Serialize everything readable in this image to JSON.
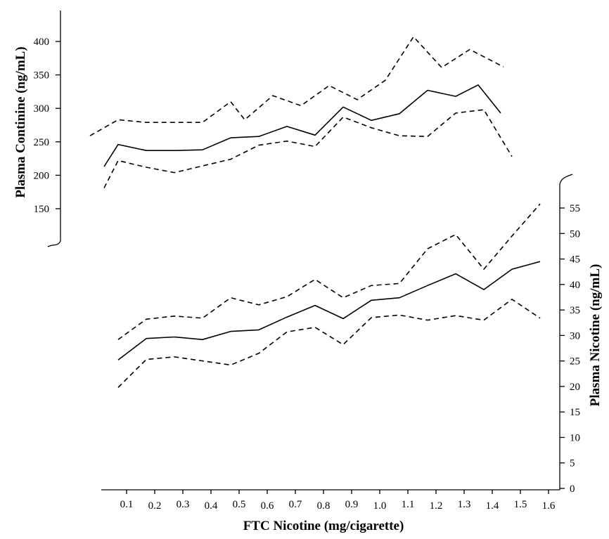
{
  "chart_data": [
    {
      "type": "line",
      "title": "",
      "xlabel": "FTC Nicotine (mg/cigarette)",
      "ylabel": "Plasma Continine (ng/mL)",
      "y_axis_side": "left",
      "y_axis_break": "bottom",
      "x_ticks": [
        "0.1",
        "0.2",
        "0.3",
        "0.4",
        "0.5",
        "0.6",
        "0.7",
        "0.8",
        "0.9",
        "1.0",
        "1.1",
        "1.2",
        "1.3",
        "1.4",
        "1.5",
        "1.6"
      ],
      "y_ticks": [
        "150",
        "200",
        "250",
        "300",
        "350",
        "400"
      ],
      "ylim": [
        100,
        430
      ],
      "grid": false,
      "series": [
        {
          "style": "solid",
          "x": [
            0.02,
            0.07,
            0.17,
            0.27,
            0.37,
            0.47,
            0.57,
            0.67,
            0.77,
            0.87,
            0.97,
            1.07,
            1.17,
            1.27,
            1.35,
            1.43
          ],
          "y": [
            213,
            246,
            237,
            237,
            238,
            256,
            258,
            273,
            260,
            302,
            282,
            292,
            327,
            318,
            335,
            293
          ]
        },
        {
          "style": "dashed",
          "x": [
            -0.03,
            0.07,
            0.17,
            0.27,
            0.37,
            0.47,
            0.52,
            0.62,
            0.72,
            0.82,
            0.92,
            1.02,
            1.12,
            1.22,
            1.32,
            1.44
          ],
          "y": [
            259,
            283,
            279,
            279,
            279,
            310,
            283,
            319,
            304,
            334,
            313,
            342,
            407,
            361,
            388,
            362
          ]
        },
        {
          "style": "dashed",
          "x": [
            0.02,
            0.07,
            0.17,
            0.27,
            0.37,
            0.47,
            0.57,
            0.67,
            0.77,
            0.87,
            0.97,
            1.07,
            1.17,
            1.27,
            1.37,
            1.47
          ],
          "y": [
            181,
            222,
            212,
            204,
            214,
            224,
            245,
            251,
            243,
            287,
            271,
            259,
            258,
            293,
            298,
            228
          ]
        }
      ]
    },
    {
      "type": "line",
      "title": "",
      "xlabel": "FTC Nicotine (mg/cigarette)",
      "ylabel": "Plasma Nicotine (ng/mL)",
      "y_axis_side": "right",
      "y_axis_break": "top",
      "x_ticks": [
        "0.1",
        "0.2",
        "0.3",
        "0.4",
        "0.5",
        "0.6",
        "0.7",
        "0.8",
        "0.9",
        "1.0",
        "1.1",
        "1.2",
        "1.3",
        "1.4",
        "1.5",
        "1.6"
      ],
      "y_ticks": [
        "0",
        "5",
        "10",
        "15",
        "20",
        "25",
        "30",
        "35",
        "40",
        "45",
        "50",
        "55"
      ],
      "ylim": [
        0,
        60
      ],
      "grid": false,
      "series": [
        {
          "style": "solid",
          "x": [
            0.07,
            0.17,
            0.27,
            0.37,
            0.47,
            0.57,
            0.67,
            0.77,
            0.87,
            0.97,
            1.07,
            1.17,
            1.27,
            1.37,
            1.47,
            1.57
          ],
          "y": [
            25.2,
            29.4,
            29.7,
            29.2,
            30.8,
            31.1,
            33.6,
            35.9,
            33.3,
            36.9,
            37.4,
            39.8,
            42.1,
            39.0,
            43.0,
            44.5
          ]
        },
        {
          "style": "dashed",
          "x": [
            0.07,
            0.17,
            0.27,
            0.37,
            0.47,
            0.57,
            0.67,
            0.77,
            0.87,
            0.97,
            1.07,
            1.17,
            1.27,
            1.37,
            1.47,
            1.57
          ],
          "y": [
            29.2,
            33.2,
            33.8,
            33.4,
            37.4,
            36.0,
            37.6,
            41.0,
            37.4,
            39.8,
            40.2,
            47.0,
            49.8,
            43.0,
            49.5,
            55.8
          ]
        },
        {
          "style": "dashed",
          "x": [
            0.07,
            0.17,
            0.27,
            0.37,
            0.47,
            0.57,
            0.67,
            0.77,
            0.87,
            0.97,
            1.07,
            1.17,
            1.27,
            1.37,
            1.47,
            1.57
          ],
          "y": [
            19.8,
            25.3,
            25.8,
            25.0,
            24.2,
            26.5,
            30.7,
            31.6,
            28.2,
            33.5,
            34.0,
            33.0,
            33.9,
            33.0,
            37.1,
            33.4
          ]
        }
      ]
    }
  ]
}
